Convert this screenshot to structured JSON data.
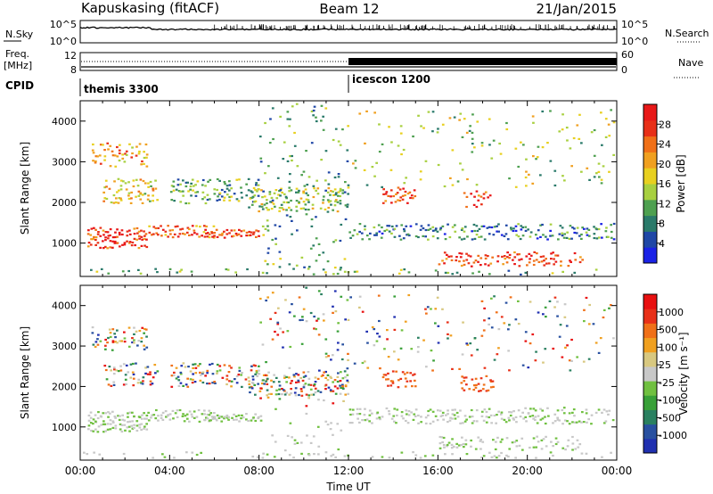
{
  "header": {
    "station": "Kapuskasing (fitACF)",
    "beam": "Beam 12",
    "date": "21/Jan/2015"
  },
  "noise_panel": {
    "left_label": "N.Sky",
    "left_ticks": [
      "10^5",
      "10^0"
    ],
    "right_label": "N.Search",
    "right_ticks": [
      "10^5",
      "10^0"
    ]
  },
  "freq_panel": {
    "left_label_line1": "Freq.",
    "left_label_line2": "[MHz]",
    "left_ticks": [
      "12",
      "8"
    ],
    "right_label": "Nave",
    "right_ticks": [
      "60",
      "0"
    ]
  },
  "cpid_panel": {
    "label": "CPID",
    "modes": [
      {
        "name": "themis 3300",
        "start_hour": 0,
        "end_hour": 12
      },
      {
        "name": "icescon 1200",
        "start_hour": 12,
        "end_hour": 24
      }
    ]
  },
  "colors": {
    "power": [
      "#1a22e6",
      "#1f47a6",
      "#2a7a6a",
      "#4ea050",
      "#a8d040",
      "#e8d020",
      "#f0a020",
      "#f07018",
      "#e83018",
      "#e81818"
    ],
    "velocity": [
      "#2030b0",
      "#2850a0",
      "#2a8060",
      "#38a038",
      "#70c040",
      "#c8c8c8",
      "#d8c880",
      "#f0a020",
      "#f07018",
      "#e83018",
      "#e81010"
    ]
  },
  "chart_data": [
    {
      "type": "heatmap",
      "name": "power",
      "xlabel": "",
      "ylabel": "Slant Range [km]",
      "xlim": [
        0,
        24
      ],
      "ylim": [
        180,
        4500
      ],
      "yticks": [
        1000,
        2000,
        3000,
        4000
      ],
      "colorbar": {
        "label": "Power [dB]",
        "ticks": [
          "28",
          "24",
          "20",
          "16",
          "12",
          "8",
          "4"
        ],
        "range": [
          0,
          32
        ]
      }
    },
    {
      "type": "heatmap",
      "name": "velocity",
      "xlabel": "Time UT",
      "ylabel": "Slant Range [km]",
      "xlim": [
        0,
        24
      ],
      "ylim": [
        180,
        4500
      ],
      "yticks": [
        1000,
        2000,
        3000,
        4000
      ],
      "xticks": [
        "00:00",
        "04:00",
        "08:00",
        "12:00",
        "16:00",
        "20:00",
        "00:00"
      ],
      "colorbar": {
        "label": "Velocity [m s⁻¹]",
        "ticks": [
          "1000",
          "500",
          "100",
          "25",
          "-25",
          "-100",
          "-500",
          "-1000"
        ]
      }
    }
  ]
}
